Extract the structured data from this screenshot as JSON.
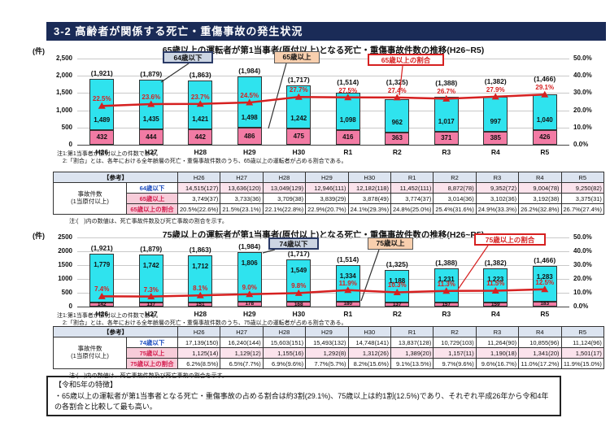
{
  "page": {
    "title": "3-2 高齢者が関係する死亡・重傷事故の発生状況"
  },
  "colors": {
    "navy": "#1a2b57",
    "cyan": "#2fe3ee",
    "pink": "#f27ba4",
    "red": "#d62020",
    "legend_blue_bg": "#ccd5e3",
    "legend_peach_bg": "#f8cfae",
    "table_header_bg": "#dce4f0",
    "row_pink_tint": "#fbe3ec",
    "sub_label_pink_bg": "#f7ccd9",
    "blue_text": "#1f4fc0",
    "red_text": "#d42050"
  },
  "chart_data": [
    {
      "type": "stacked-bar-line",
      "title": "65歳以上の運転者が第1当事者(原付以上)となる死亡・重傷事故件数の推移(H26~R5)",
      "unit_label": "(件)",
      "categories": [
        "H26",
        "H27",
        "H28",
        "H29",
        "H30",
        "R1",
        "R2",
        "R3",
        "R4",
        "R5"
      ],
      "totals_labels": [
        "(1,921)",
        "(1,879)",
        "(1,863)",
        "(1,984)",
        "(1,717)",
        "(1,514)",
        "(1,325)",
        "(1,388)",
        "(1,382)",
        "(1,466)"
      ],
      "series": [
        {
          "name": "64歳以下",
          "role": "bar-top",
          "values": [
            1489,
            1435,
            1421,
            1498,
            1242,
            1098,
            962,
            1017,
            997,
            1040
          ],
          "labels": [
            "1,489",
            "1,435",
            "1,421",
            "1,498",
            "1,242",
            "1,098",
            "962",
            "1,017",
            "997",
            "1,040"
          ]
        },
        {
          "name": "65歳以上",
          "role": "bar-bottom",
          "values": [
            432,
            444,
            442,
            486,
            475,
            416,
            363,
            371,
            385,
            426
          ],
          "labels": [
            "432",
            "444",
            "442",
            "486",
            "475",
            "416",
            "363",
            "371",
            "385",
            "426"
          ]
        },
        {
          "name": "65歳以上の割合",
          "role": "line",
          "values": [
            22.5,
            23.6,
            23.7,
            24.5,
            27.7,
            27.5,
            27.4,
            26.7,
            27.9,
            29.1
          ],
          "labels": [
            "22.5%",
            "23.6%",
            "23.7%",
            "24.5%",
            "27.7%",
            "27.5%",
            "27.4%",
            "26.7%",
            "27.9%",
            "29.1%"
          ]
        }
      ],
      "left_axis": {
        "max": 2500,
        "ticks": [
          "2,500",
          "2,000",
          "1,500",
          "1,000",
          "500",
          "0"
        ]
      },
      "right_axis": {
        "max": 50,
        "ticks": [
          "50.0%",
          "40.0%",
          "30.0%",
          "20.0%",
          "10.0%",
          "0.0%"
        ]
      },
      "grid": true,
      "legend_position": "top",
      "notes": [
        "注1:第1当事者が原付以上の件数である。",
        "　2:「割合」とは、各年における全年齢層の死亡・重傷事故件数のうち、65歳以上の運転者が占める割合である。"
      ]
    },
    {
      "type": "stacked-bar-line",
      "title": "75歳以上の運転者が第1当事者(原付以上)となる死亡・重傷事故件数の推移(H26~R5)",
      "unit_label": "(件)",
      "categories": [
        "H26",
        "H27",
        "H28",
        "H29",
        "H30",
        "R1",
        "R2",
        "R3",
        "R4",
        "R5"
      ],
      "totals_labels": [
        "(1,921)",
        "(1,879)",
        "(1,863)",
        "(1,984)",
        "(1,717)",
        "(1,514)",
        "(1,325)",
        "(1,388)",
        "(1,382)",
        "(1,466)"
      ],
      "series": [
        {
          "name": "74歳以下",
          "role": "bar-top",
          "values": [
            1779,
            1742,
            1712,
            1806,
            1549,
            1334,
            1188,
            1231,
            1223,
            1283
          ],
          "labels": [
            "1,779",
            "1,742",
            "1,712",
            "1,806",
            "1,549",
            "1,334",
            "1,188",
            "1,231",
            "1,223",
            "1,283"
          ]
        },
        {
          "name": "75歳以上",
          "role": "bar-bottom",
          "values": [
            142,
            137,
            151,
            178,
            168,
            180,
            137,
            157,
            159,
            183
          ],
          "labels": [
            "142",
            "137",
            "151",
            "178",
            "168",
            "180",
            "137",
            "157",
            "159",
            "183"
          ]
        },
        {
          "name": "75歳以上の割合",
          "role": "line",
          "values": [
            7.4,
            7.3,
            8.1,
            9.0,
            9.8,
            11.9,
            10.3,
            11.3,
            11.5,
            12.5
          ],
          "labels": [
            "7.4%",
            "7.3%",
            "8.1%",
            "9.0%",
            "9.8%",
            "11.9%",
            "10.3%",
            "11.3%",
            "11.5%",
            "12.5%"
          ]
        }
      ],
      "left_axis": {
        "max": 2500,
        "ticks": [
          "2500",
          "2000",
          "1500",
          "1000",
          "500",
          "0"
        ]
      },
      "right_axis": {
        "max": 50,
        "ticks": [
          "50.0%",
          "40.0%",
          "30.0%",
          "20.0%",
          "10.0%",
          "0.0%"
        ]
      },
      "grid": true,
      "legend_position": "top",
      "notes": [
        "注1:第1当事者が原付以上の件数である。",
        "　2:「割合」とは、各年における全年齢層の死亡・重傷事故件数のうち、75歳以上の運転者が占める割合である。"
      ]
    }
  ],
  "tables": [
    {
      "header_label": "【参考】",
      "years": [
        "H26",
        "H27",
        "H28",
        "H29",
        "H30",
        "R1",
        "R2",
        "R3",
        "R4",
        "R5"
      ],
      "group_label_lines": [
        "事故件数",
        "(1当原付以上)"
      ],
      "rows": [
        {
          "label": "64歳以下",
          "label_style": "blue",
          "tint": true,
          "cells": [
            "14,515(127)",
            "13,636(120)",
            "13,049(129)",
            "12,946(111)",
            "12,182(118)",
            "11,452(111)",
            "8,872(78)",
            "9,352(72)",
            "9,004(78)",
            "9,250(82)"
          ]
        },
        {
          "label": "65歳以上",
          "label_style": "red",
          "tint": false,
          "cells": [
            "3,749(37)",
            "3,733(36)",
            "3,709(38)",
            "3,839(29)",
            "3,878(49)",
            "3,774(37)",
            "3,014(36)",
            "3,102(36)",
            "3,192(38)",
            "3,375(31)"
          ]
        },
        {
          "label": "65歳以上の割合",
          "label_style": "red",
          "tint": false,
          "cells": [
            "20.5%(22.6%)",
            "21.5%(23.1%)",
            "22.1%(22.8%)",
            "22.9%(20.7%)",
            "24.1%(29.3%)",
            "24.8%(25.0%)",
            "25.4%(31.6%)",
            "24.9%(33.3%)",
            "26.2%(32.8%)",
            "26.7%(27.4%)"
          ]
        }
      ],
      "note": "注:(　)内の数値は、死亡事故件数及び死亡事故の割合を示す。"
    },
    {
      "header_label": "【参考】",
      "years": [
        "H26",
        "H27",
        "H28",
        "H29",
        "H30",
        "R1",
        "R2",
        "R3",
        "R4",
        "R5"
      ],
      "group_label_lines": [
        "事故件数",
        "(1当原付以上)"
      ],
      "rows": [
        {
          "label": "74歳以下",
          "label_style": "blue",
          "tint": false,
          "cells": [
            "17,139(150)",
            "16,240(144)",
            "15,603(151)",
            "15,493(132)",
            "14,748(141)",
            "13,837(128)",
            "10,729(103)",
            "11,264(90)",
            "10,855(96)",
            "11,124(96)"
          ]
        },
        {
          "label": "75歳以上",
          "label_style": "red",
          "tint": true,
          "cells": [
            "1,125(14)",
            "1,129(12)",
            "1,155(16)",
            "1,292(8)",
            "1,312(26)",
            "1,389(20)",
            "1,157(11)",
            "1,190(18)",
            "1,341(20)",
            "1,501(17)"
          ]
        },
        {
          "label": "75歳以上の割合",
          "label_style": "red",
          "tint": false,
          "cells": [
            "6.2%(8.5%)",
            "6.5%(7.7%)",
            "6.9%(9.6%)",
            "7.7%(5.7%)",
            "8.2%(15.6%)",
            "9.1%(13.5%)",
            "9.7%(9.6%)",
            "9.6%(16.7%)",
            "11.0%(17.2%)",
            "11.9%(15.0%)"
          ]
        }
      ],
      "note": "注:(　)内の数値は、死亡事故件数及び死亡事故の割合を示す。"
    }
  ],
  "footer_box": {
    "title": "【令和5年の特徴】",
    "body": "・65歳以上の運転者が第1当事者となる死亡・重傷事故の占める割合は約3割(29.1%)、75歳以上は約1割(12.5%)であり、それぞれ平成26年から令和4年の各割合と比較して最も高い。"
  }
}
